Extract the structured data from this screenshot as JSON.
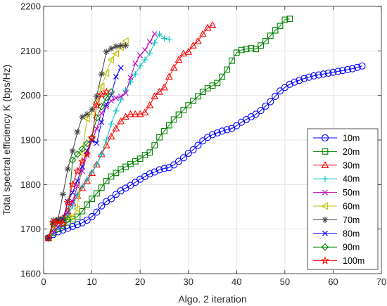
{
  "chart_data": {
    "type": "line",
    "title": "",
    "xlabel": "Algo. 2 iteration",
    "ylabel": "Total spectral efficiency K (bps/Hz)",
    "xlim": [
      0,
      70
    ],
    "ylim": [
      1600,
      2200
    ],
    "xticks": [
      0,
      10,
      20,
      30,
      40,
      50,
      60,
      70
    ],
    "yticks": [
      1600,
      1700,
      1800,
      1900,
      2000,
      2100,
      2200
    ],
    "grid": true,
    "legend_position": "bottom-right",
    "series": [
      {
        "name": "10m",
        "color": "#0000ff",
        "marker": "circle",
        "points": [
          [
            1,
            1680
          ],
          [
            2,
            1688
          ],
          [
            3,
            1694
          ],
          [
            4,
            1698
          ],
          [
            5,
            1702
          ],
          [
            6,
            1706
          ],
          [
            7,
            1710
          ],
          [
            8,
            1714
          ],
          [
            9,
            1720
          ],
          [
            10,
            1728
          ],
          [
            11,
            1738
          ],
          [
            12,
            1752
          ],
          [
            13,
            1762
          ],
          [
            14,
            1768
          ],
          [
            15,
            1778
          ],
          [
            16,
            1786
          ],
          [
            17,
            1792
          ],
          [
            18,
            1798
          ],
          [
            19,
            1805
          ],
          [
            20,
            1812
          ],
          [
            21,
            1818
          ],
          [
            22,
            1824
          ],
          [
            23,
            1828
          ],
          [
            24,
            1833
          ],
          [
            25,
            1836
          ],
          [
            26,
            1838
          ],
          [
            27,
            1844
          ],
          [
            28,
            1852
          ],
          [
            29,
            1860
          ],
          [
            30,
            1870
          ],
          [
            31,
            1878
          ],
          [
            32,
            1888
          ],
          [
            33,
            1898
          ],
          [
            34,
            1906
          ],
          [
            35,
            1912
          ],
          [
            36,
            1916
          ],
          [
            37,
            1920
          ],
          [
            38,
            1923
          ],
          [
            39,
            1926
          ],
          [
            40,
            1932
          ],
          [
            41,
            1940
          ],
          [
            42,
            1946
          ],
          [
            43,
            1952
          ],
          [
            44,
            1958
          ],
          [
            45,
            1966
          ],
          [
            46,
            1976
          ],
          [
            47,
            1986
          ],
          [
            48,
            1998
          ],
          [
            49,
            2010
          ],
          [
            50,
            2018
          ],
          [
            51,
            2025
          ],
          [
            52,
            2030
          ],
          [
            53,
            2034
          ],
          [
            54,
            2038
          ],
          [
            55,
            2041
          ],
          [
            56,
            2044
          ],
          [
            57,
            2046
          ],
          [
            58,
            2048
          ],
          [
            59,
            2050
          ],
          [
            60,
            2052
          ],
          [
            61,
            2054
          ],
          [
            62,
            2056
          ],
          [
            63,
            2058
          ],
          [
            64,
            2060
          ],
          [
            65,
            2063
          ],
          [
            66,
            2066
          ]
        ]
      },
      {
        "name": "20m",
        "color": "#008000",
        "marker": "square",
        "points": [
          [
            1,
            1680
          ],
          [
            2,
            1692
          ],
          [
            3,
            1700
          ],
          [
            4,
            1708
          ],
          [
            5,
            1715
          ],
          [
            6,
            1722
          ],
          [
            7,
            1728
          ],
          [
            8,
            1740
          ],
          [
            9,
            1755
          ],
          [
            10,
            1768
          ],
          [
            11,
            1780
          ],
          [
            12,
            1793
          ],
          [
            13,
            1808
          ],
          [
            14,
            1818
          ],
          [
            15,
            1826
          ],
          [
            16,
            1834
          ],
          [
            17,
            1840
          ],
          [
            18,
            1846
          ],
          [
            19,
            1852
          ],
          [
            20,
            1858
          ],
          [
            21,
            1866
          ],
          [
            22,
            1872
          ],
          [
            23,
            1888
          ],
          [
            24,
            1906
          ],
          [
            25,
            1920
          ],
          [
            26,
            1933
          ],
          [
            27,
            1946
          ],
          [
            28,
            1957
          ],
          [
            29,
            1967
          ],
          [
            30,
            1978
          ],
          [
            31,
            1988
          ],
          [
            32,
            1998
          ],
          [
            33,
            2008
          ],
          [
            34,
            2016
          ],
          [
            35,
            2022
          ],
          [
            36,
            2028
          ],
          [
            37,
            2042
          ],
          [
            38,
            2058
          ],
          [
            39,
            2078
          ],
          [
            40,
            2096
          ],
          [
            41,
            2102
          ],
          [
            42,
            2104
          ],
          [
            43,
            2106
          ],
          [
            44,
            2104
          ],
          [
            45,
            2112
          ],
          [
            46,
            2122
          ],
          [
            47,
            2134
          ],
          [
            48,
            2146
          ],
          [
            49,
            2156
          ],
          [
            50,
            2170
          ],
          [
            51,
            2172
          ]
        ]
      },
      {
        "name": "30m",
        "color": "#ff0000",
        "marker": "triangle",
        "points": [
          [
            1,
            1680
          ],
          [
            2,
            1700
          ],
          [
            3,
            1712
          ],
          [
            4,
            1725
          ],
          [
            5,
            1740
          ],
          [
            6,
            1758
          ],
          [
            7,
            1775
          ],
          [
            8,
            1792
          ],
          [
            9,
            1808
          ],
          [
            10,
            1826
          ],
          [
            11,
            1845
          ],
          [
            12,
            1868
          ],
          [
            13,
            1888
          ],
          [
            14,
            1908
          ],
          [
            15,
            1926
          ],
          [
            16,
            1942
          ],
          [
            17,
            1952
          ],
          [
            18,
            1958
          ],
          [
            19,
            1958
          ],
          [
            20,
            1958
          ],
          [
            21,
            1962
          ],
          [
            22,
            1978
          ],
          [
            23,
            1998
          ],
          [
            24,
            2008
          ],
          [
            25,
            2018
          ],
          [
            26,
            2042
          ],
          [
            27,
            2062
          ],
          [
            28,
            2080
          ],
          [
            29,
            2094
          ],
          [
            30,
            2098
          ],
          [
            31,
            2112
          ],
          [
            32,
            2122
          ],
          [
            33,
            2138
          ],
          [
            34,
            2152
          ],
          [
            35,
            2158
          ]
        ]
      },
      {
        "name": "40m",
        "color": "#00bfbf",
        "marker": "plus",
        "points": [
          [
            1,
            1680
          ],
          [
            2,
            1690
          ],
          [
            3,
            1702
          ],
          [
            4,
            1714
          ],
          [
            5,
            1730
          ],
          [
            6,
            1752
          ],
          [
            7,
            1778
          ],
          [
            8,
            1796
          ],
          [
            9,
            1812
          ],
          [
            10,
            1828
          ],
          [
            11,
            1845
          ],
          [
            12,
            1868
          ],
          [
            13,
            1900
          ],
          [
            14,
            1936
          ],
          [
            15,
            1965
          ],
          [
            16,
            1990
          ],
          [
            17,
            2012
          ],
          [
            18,
            2030
          ],
          [
            19,
            2048
          ],
          [
            20,
            2066
          ],
          [
            21,
            2080
          ],
          [
            22,
            2095
          ],
          [
            23,
            2118
          ],
          [
            24,
            2138
          ],
          [
            25,
            2128
          ],
          [
            26,
            2126
          ]
        ]
      },
      {
        "name": "50m",
        "color": "#bf00bf",
        "marker": "x",
        "points": [
          [
            1,
            1680
          ],
          [
            2,
            1692
          ],
          [
            3,
            1705
          ],
          [
            4,
            1720
          ],
          [
            5,
            1738
          ],
          [
            6,
            1762
          ],
          [
            7,
            1796
          ],
          [
            8,
            1830
          ],
          [
            9,
            1866
          ],
          [
            10,
            1898
          ],
          [
            11,
            1925
          ],
          [
            12,
            1960
          ],
          [
            13,
            1975
          ],
          [
            14,
            1988
          ],
          [
            15,
            1994
          ],
          [
            16,
            1998
          ],
          [
            17,
            2005
          ],
          [
            18,
            2040
          ],
          [
            19,
            2072
          ],
          [
            20,
            2090
          ],
          [
            21,
            2102
          ],
          [
            22,
            2120
          ],
          [
            23,
            2138
          ]
        ]
      },
      {
        "name": "60m",
        "color": "#bfbf00",
        "marker": "triangle-left",
        "points": [
          [
            1,
            1680
          ],
          [
            2,
            1710
          ],
          [
            3,
            1722
          ],
          [
            4,
            1722
          ],
          [
            5,
            1725
          ],
          [
            6,
            1728
          ],
          [
            7,
            1745
          ],
          [
            8,
            1870
          ],
          [
            9,
            1948
          ],
          [
            10,
            1962
          ],
          [
            11,
            1985
          ],
          [
            12,
            2020
          ],
          [
            13,
            2050
          ],
          [
            14,
            2080
          ],
          [
            15,
            2094
          ],
          [
            16,
            2108
          ],
          [
            17,
            2122
          ]
        ]
      },
      {
        "name": "70m",
        "color": "#404040",
        "marker": "asterisk",
        "points": [
          [
            1,
            1680
          ],
          [
            2,
            1720
          ],
          [
            3,
            1722
          ],
          [
            4,
            1778
          ],
          [
            5,
            1835
          ],
          [
            6,
            1875
          ],
          [
            7,
            1918
          ],
          [
            8,
            1952
          ],
          [
            9,
            1958
          ],
          [
            10,
            1968
          ],
          [
            11,
            1998
          ],
          [
            12,
            2048
          ],
          [
            13,
            2098
          ],
          [
            14,
            2105
          ],
          [
            15,
            2110
          ],
          [
            16,
            2112
          ],
          [
            17,
            2112
          ]
        ]
      },
      {
        "name": "80m",
        "color": "#0000ff",
        "marker": "x",
        "points": [
          [
            1,
            1680
          ],
          [
            2,
            1712
          ],
          [
            3,
            1720
          ],
          [
            4,
            1722
          ],
          [
            5,
            1762
          ],
          [
            6,
            1782
          ],
          [
            7,
            1808
          ],
          [
            8,
            1840
          ],
          [
            9,
            1876
          ],
          [
            10,
            1900
          ],
          [
            11,
            1893
          ],
          [
            12,
            1940
          ],
          [
            13,
            1980
          ],
          [
            14,
            2000
          ],
          [
            15,
            2042
          ],
          [
            16,
            2062
          ]
        ]
      },
      {
        "name": "90m",
        "color": "#008000",
        "marker": "diamond",
        "points": [
          [
            1,
            1680
          ],
          [
            2,
            1712
          ],
          [
            3,
            1718
          ],
          [
            4,
            1720
          ],
          [
            5,
            1722
          ],
          [
            6,
            1855
          ],
          [
            7,
            1868
          ],
          [
            8,
            1880
          ],
          [
            9,
            1892
          ],
          [
            10,
            1905
          ],
          [
            11,
            1950
          ],
          [
            12,
            1975
          ],
          [
            13,
            1995
          ],
          [
            14,
            2008
          ]
        ]
      },
      {
        "name": "100m",
        "color": "#ff0000",
        "marker": "star",
        "points": [
          [
            1,
            1680
          ],
          [
            2,
            1715
          ],
          [
            3,
            1718
          ],
          [
            4,
            1712
          ],
          [
            5,
            1760
          ],
          [
            6,
            1800
          ],
          [
            7,
            1830
          ],
          [
            8,
            1852
          ],
          [
            9,
            1868
          ],
          [
            10,
            1905
          ],
          [
            11,
            1978
          ],
          [
            12,
            2002
          ],
          [
            13,
            2008
          ]
        ]
      }
    ]
  }
}
